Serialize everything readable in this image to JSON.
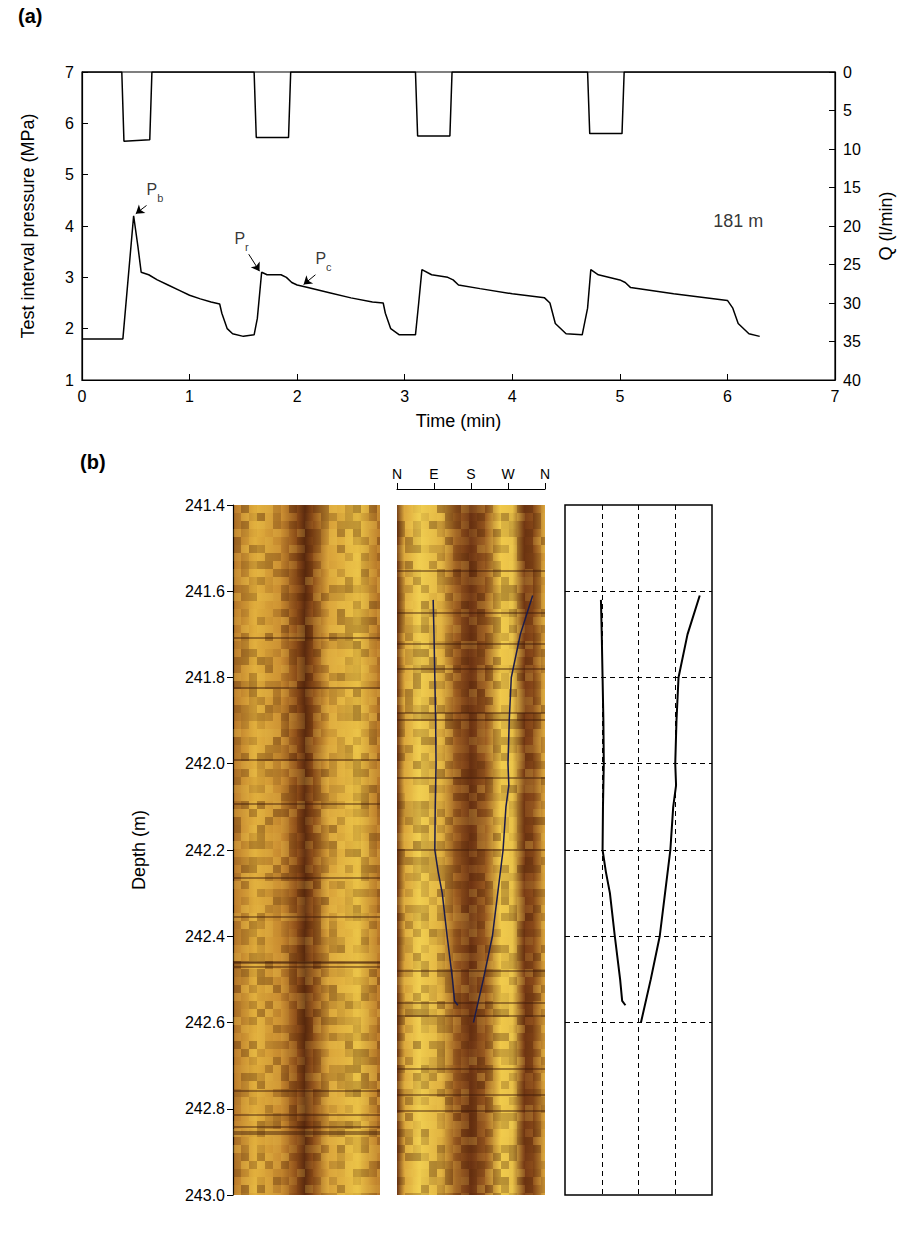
{
  "chart_data": [
    {
      "label": "(a)",
      "type": "line",
      "xlabel": "Time (min)",
      "ylabel": "Test interval pressure (MPa)",
      "y2label": "Q (l/min)",
      "xlim": [
        0,
        7
      ],
      "xticks": [
        0,
        1,
        2,
        3,
        4,
        5,
        6,
        7
      ],
      "ylim": [
        1,
        7
      ],
      "yticks": [
        1,
        2,
        3,
        4,
        5,
        6,
        7
      ],
      "y2lim": [
        40,
        0
      ],
      "y2ticks": [
        0,
        5,
        10,
        15,
        20,
        25,
        30,
        35,
        40
      ],
      "grid": false,
      "series": [
        {
          "color": "#000000",
          "values": [
            [
              0,
              1.8
            ],
            [
              0.38,
              1.8
            ],
            [
              0.48,
              4.2
            ],
            [
              0.52,
              3.6
            ],
            [
              0.55,
              3.1
            ],
            [
              0.62,
              3.05
            ],
            [
              0.7,
              2.95
            ],
            [
              0.8,
              2.85
            ],
            [
              0.9,
              2.75
            ],
            [
              1.0,
              2.65
            ],
            [
              1.1,
              2.58
            ],
            [
              1.2,
              2.52
            ],
            [
              1.28,
              2.48
            ],
            [
              1.3,
              2.3
            ],
            [
              1.35,
              2.0
            ],
            [
              1.4,
              1.9
            ],
            [
              1.5,
              1.85
            ],
            [
              1.6,
              1.88
            ],
            [
              1.63,
              2.2
            ],
            [
              1.67,
              3.1
            ],
            [
              1.72,
              3.05
            ],
            [
              1.85,
              3.05
            ],
            [
              1.9,
              3.0
            ],
            [
              1.95,
              2.9
            ],
            [
              2.0,
              2.85
            ],
            [
              2.1,
              2.8
            ],
            [
              2.3,
              2.7
            ],
            [
              2.5,
              2.6
            ],
            [
              2.7,
              2.52
            ],
            [
              2.8,
              2.5
            ],
            [
              2.82,
              2.3
            ],
            [
              2.87,
              2.0
            ],
            [
              2.95,
              1.88
            ],
            [
              3.1,
              1.88
            ],
            [
              3.13,
              2.5
            ],
            [
              3.16,
              3.15
            ],
            [
              3.25,
              3.05
            ],
            [
              3.4,
              3.0
            ],
            [
              3.45,
              2.95
            ],
            [
              3.5,
              2.85
            ],
            [
              3.7,
              2.78
            ],
            [
              4.0,
              2.68
            ],
            [
              4.3,
              2.6
            ],
            [
              4.35,
              2.5
            ],
            [
              4.4,
              2.1
            ],
            [
              4.5,
              1.9
            ],
            [
              4.65,
              1.88
            ],
            [
              4.7,
              2.4
            ],
            [
              4.73,
              3.15
            ],
            [
              4.8,
              3.05
            ],
            [
              5.0,
              2.95
            ],
            [
              5.05,
              2.9
            ],
            [
              5.1,
              2.8
            ],
            [
              5.5,
              2.68
            ],
            [
              6.0,
              2.55
            ],
            [
              6.05,
              2.4
            ],
            [
              6.1,
              2.1
            ],
            [
              6.2,
              1.9
            ],
            [
              6.3,
              1.85
            ]
          ]
        },
        {
          "color": "#000000",
          "axis": "y2",
          "values": [
            [
              0,
              0
            ],
            [
              0.37,
              0
            ],
            [
              0.39,
              9
            ],
            [
              0.63,
              8.8
            ],
            [
              0.65,
              0
            ],
            [
              1.6,
              0
            ],
            [
              1.62,
              8.5
            ],
            [
              1.92,
              8.5
            ],
            [
              1.94,
              0
            ],
            [
              3.1,
              0
            ],
            [
              3.12,
              8.3
            ],
            [
              3.42,
              8.3
            ],
            [
              3.44,
              0
            ],
            [
              4.7,
              0
            ],
            [
              4.72,
              8.0
            ],
            [
              5.02,
              8.0
            ],
            [
              5.04,
              0
            ],
            [
              7,
              0
            ]
          ]
        }
      ],
      "annotations": [
        {
          "text": "P",
          "subscript": "b",
          "x": 0.6,
          "y": 4.4,
          "arrow_to": [
            0.5,
            4.24
          ]
        },
        {
          "text": "P",
          "subscript": "r",
          "x": 1.55,
          "y": 3.45,
          "arrow_to": [
            1.65,
            3.12
          ]
        },
        {
          "text": "P",
          "subscript": "c",
          "x": 2.17,
          "y": 3.05,
          "arrow_to": [
            2.06,
            2.86
          ]
        },
        {
          "text": "181 m",
          "x": 6.1,
          "y": 4.05
        }
      ]
    },
    {
      "label": "(b)",
      "type": "image",
      "ylabel": "Depth (m)",
      "ylim": [
        243.0,
        241.4
      ],
      "yticks": [
        241.4,
        241.6,
        241.8,
        {
          "value": 242,
          "label": "242.0"
        },
        242.2,
        242.4,
        242.6,
        242.8,
        {
          "value": 243,
          "label": "243.0"
        }
      ],
      "xlim": [
        0,
        360
      ],
      "xticks": [
        {
          "value": 0,
          "label": "N"
        },
        {
          "value": 90,
          "label": "E"
        },
        {
          "value": 180,
          "label": "S"
        },
        {
          "value": 270,
          "label": "W"
        },
        {
          "value": 360,
          "label": "N"
        }
      ]
    },
    {
      "type": "line",
      "xlim": [
        0,
        360
      ],
      "xticks": [
        90,
        180,
        270
      ],
      "ylim": [
        243.0,
        241.4
      ],
      "yticks": [
        241.6,
        241.8,
        242,
        242.2,
        242.4,
        242.6
      ],
      "tick_labels": false,
      "grid": true,
      "series": [
        {
          "color": "#000000",
          "values": [
            [
              88,
              241.62
            ],
            [
              90,
              241.7
            ],
            [
              92,
              241.8
            ],
            [
              94,
              241.9
            ],
            [
              95,
              242.0
            ],
            [
              93,
              242.1
            ],
            [
              92,
              242.2
            ],
            [
              100,
              242.25
            ],
            [
              110,
              242.3
            ],
            [
              122,
              242.4
            ],
            [
              135,
              242.5
            ],
            [
              140,
              242.55
            ],
            [
              148,
              242.56
            ]
          ]
        },
        {
          "color": "#000000",
          "values": [
            [
              330,
              241.61
            ],
            [
              300,
              241.7
            ],
            [
              278,
              241.8
            ],
            [
              273,
              241.9
            ],
            [
              270,
              242.0
            ],
            [
              272,
              242.05
            ],
            [
              265,
              242.1
            ],
            [
              258,
              242.2
            ],
            [
              245,
              242.3
            ],
            [
              232,
              242.4
            ],
            [
              210,
              242.5
            ],
            [
              186,
              242.6
            ]
          ]
        }
      ]
    }
  ]
}
